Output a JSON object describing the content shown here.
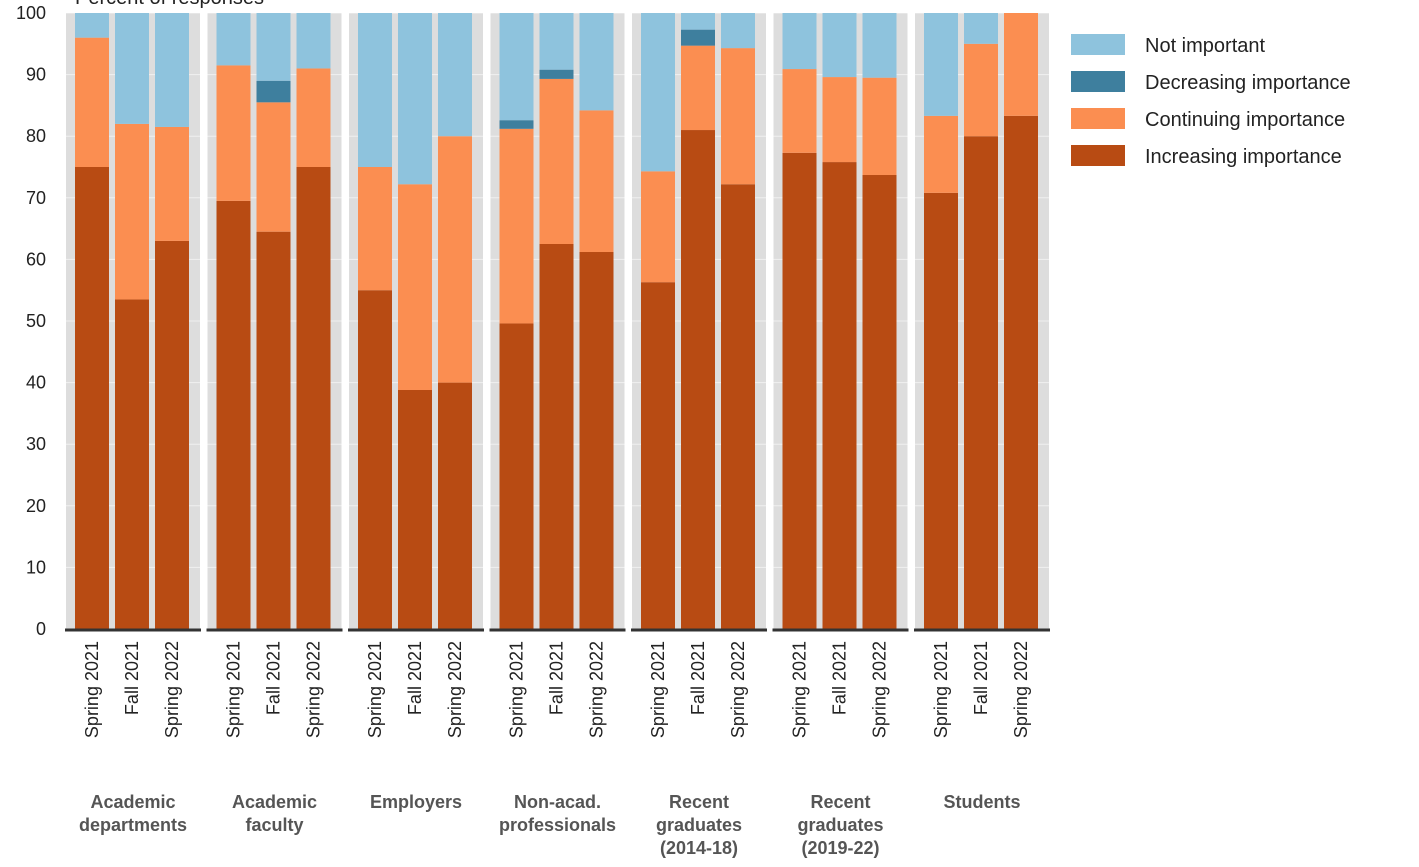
{
  "chart_data": {
    "type": "bar",
    "stacked": true,
    "ylabel": "Percent of responses",
    "ylim": [
      0,
      100
    ],
    "yticks": [
      0,
      10,
      20,
      30,
      40,
      50,
      60,
      70,
      80,
      90,
      100
    ],
    "grid": true,
    "legend_position": "top-right",
    "legend_order": [
      "Not important",
      "Decreasing importance",
      "Continuing importance",
      "Increasing importance"
    ],
    "series_colors": {
      "Increasing importance": "#b84b13",
      "Continuing importance": "#fb8e51",
      "Decreasing importance": "#3e7f9e",
      "Not important": "#8ec3dd"
    },
    "panel_background": "#dddddd",
    "groups": [
      {
        "name": [
          "Academic",
          "departments"
        ],
        "categories": [
          "Spring 2021",
          "Fall 2021",
          "Spring 2022"
        ],
        "series": [
          {
            "name": "Increasing importance",
            "values": [
              75,
              53.5,
              63
            ]
          },
          {
            "name": "Continuing importance",
            "values": [
              21,
              28.5,
              18.5
            ]
          },
          {
            "name": "Decreasing importance",
            "values": [
              0,
              0,
              0
            ]
          },
          {
            "name": "Not important",
            "values": [
              4,
              18,
              18.5
            ]
          }
        ]
      },
      {
        "name": [
          "Academic",
          "faculty"
        ],
        "categories": [
          "Spring 2021",
          "Fall 2021",
          "Spring 2022"
        ],
        "series": [
          {
            "name": "Increasing importance",
            "values": [
              69.5,
              64.5,
              75
            ]
          },
          {
            "name": "Continuing importance",
            "values": [
              22,
              21,
              16
            ]
          },
          {
            "name": "Decreasing importance",
            "values": [
              0,
              3.5,
              0
            ]
          },
          {
            "name": "Not important",
            "values": [
              8.5,
              11,
              9
            ]
          }
        ]
      },
      {
        "name": [
          "Employers"
        ],
        "categories": [
          "Spring 2021",
          "Fall 2021",
          "Spring 2022"
        ],
        "series": [
          {
            "name": "Increasing importance",
            "values": [
              55,
              38.8,
              40
            ]
          },
          {
            "name": "Continuing importance",
            "values": [
              20,
              33.4,
              40
            ]
          },
          {
            "name": "Decreasing importance",
            "values": [
              0,
              0,
              0
            ]
          },
          {
            "name": "Not important",
            "values": [
              25,
              27.8,
              20
            ]
          }
        ]
      },
      {
        "name": [
          "Non-acad.",
          "professionals"
        ],
        "categories": [
          "Spring 2021",
          "Fall 2021",
          "Spring 2022"
        ],
        "series": [
          {
            "name": "Increasing importance",
            "values": [
              49.6,
              62.5,
              61.2
            ]
          },
          {
            "name": "Continuing importance",
            "values": [
              31.6,
              26.8,
              23
            ]
          },
          {
            "name": "Decreasing importance",
            "values": [
              1.4,
              1.5,
              0
            ]
          },
          {
            "name": "Not important",
            "values": [
              17.4,
              9.2,
              15.8
            ]
          }
        ]
      },
      {
        "name": [
          "Recent",
          "graduates",
          "(2014-18)"
        ],
        "categories": [
          "Spring 2021",
          "Fall 2021",
          "Spring 2022"
        ],
        "series": [
          {
            "name": "Increasing importance",
            "values": [
              56.3,
              81,
              72.2
            ]
          },
          {
            "name": "Continuing importance",
            "values": [
              18,
              13.7,
              22.1
            ]
          },
          {
            "name": "Decreasing importance",
            "values": [
              0,
              2.6,
              0
            ]
          },
          {
            "name": "Not important",
            "values": [
              25.7,
              2.7,
              5.7
            ]
          }
        ]
      },
      {
        "name": [
          "Recent",
          "graduates",
          "(2019-22)"
        ],
        "categories": [
          "Spring 2021",
          "Fall 2021",
          "Spring 2022"
        ],
        "series": [
          {
            "name": "Increasing importance",
            "values": [
              77.3,
              75.8,
              73.7
            ]
          },
          {
            "name": "Continuing importance",
            "values": [
              13.6,
              13.8,
              15.8
            ]
          },
          {
            "name": "Decreasing importance",
            "values": [
              0,
              0,
              0
            ]
          },
          {
            "name": "Not important",
            "values": [
              9.1,
              10.4,
              10.5
            ]
          }
        ]
      },
      {
        "name": [
          "Students"
        ],
        "categories": [
          "Spring 2021",
          "Fall 2021",
          "Spring 2022"
        ],
        "series": [
          {
            "name": "Increasing importance",
            "values": [
              70.8,
              80,
              83.3
            ]
          },
          {
            "name": "Continuing importance",
            "values": [
              12.5,
              15,
              16.7
            ]
          },
          {
            "name": "Decreasing importance",
            "values": [
              0,
              0,
              0
            ]
          },
          {
            "name": "Not important",
            "values": [
              16.7,
              5,
              0
            ]
          }
        ]
      }
    ]
  }
}
